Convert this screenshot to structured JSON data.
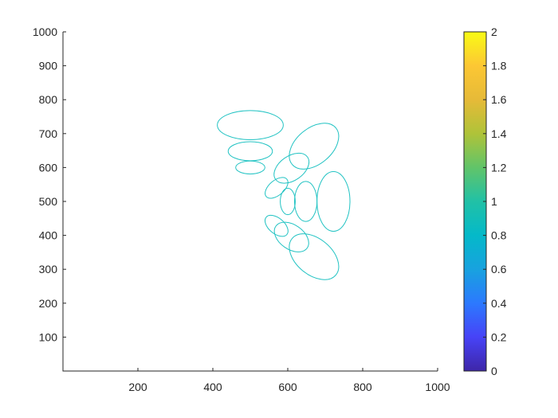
{
  "chart_data": {
    "type": "scatter",
    "title": "",
    "xlabel": "",
    "ylabel": "",
    "xlim": [
      0,
      1000
    ],
    "ylim": [
      0,
      1000
    ],
    "xticks": [
      200,
      400,
      600,
      800,
      1000
    ],
    "yticks": [
      100,
      200,
      300,
      400,
      500,
      600,
      700,
      800,
      900,
      1000
    ],
    "grid": false,
    "shapes": "ellipse outlines",
    "ellipse_color": "#22C3C3",
    "ellipses": [
      {
        "cx": 500,
        "cy": 725,
        "rx": 88,
        "ry": 43,
        "angle": 0
      },
      {
        "cx": 500,
        "cy": 648,
        "rx": 59,
        "ry": 28,
        "angle": 0
      },
      {
        "cx": 500,
        "cy": 600,
        "rx": 39,
        "ry": 19,
        "angle": 0
      },
      {
        "cx": 670,
        "cy": 663,
        "rx": 76,
        "ry": 53,
        "angle": -40
      },
      {
        "cx": 610,
        "cy": 598,
        "rx": 52,
        "ry": 36,
        "angle": -35
      },
      {
        "cx": 570,
        "cy": 540,
        "rx": 36,
        "ry": 22,
        "angle": -40
      },
      {
        "cx": 600,
        "cy": 500,
        "rx": 20,
        "ry": 39,
        "angle": 0
      },
      {
        "cx": 648,
        "cy": 500,
        "rx": 30,
        "ry": 59,
        "angle": 0
      },
      {
        "cx": 722,
        "cy": 500,
        "rx": 44,
        "ry": 88,
        "angle": 0
      },
      {
        "cx": 570,
        "cy": 428,
        "rx": 36,
        "ry": 23,
        "angle": 40
      },
      {
        "cx": 610,
        "cy": 395,
        "rx": 51,
        "ry": 36,
        "angle": 35
      },
      {
        "cx": 670,
        "cy": 337,
        "rx": 76,
        "ry": 53,
        "angle": 40
      }
    ],
    "colorbar": {
      "range": [
        0,
        2
      ],
      "ticks": [
        0,
        0.2,
        0.4,
        0.6,
        0.8,
        1,
        1.2,
        1.4,
        1.6,
        1.8,
        2
      ],
      "tick_labels": [
        "0",
        "0.2",
        "0.4",
        "0.6",
        "0.8",
        "1",
        "1.2",
        "1.4",
        "1.6",
        "1.8",
        "2"
      ],
      "colormap": [
        "#3E26A8",
        "#4743F7",
        "#2C79FE",
        "#18A2DF",
        "#04B9C9",
        "#21C1A6",
        "#61C469",
        "#AFC339",
        "#E6BA38",
        "#FCC734",
        "#F9FB15"
      ]
    }
  }
}
